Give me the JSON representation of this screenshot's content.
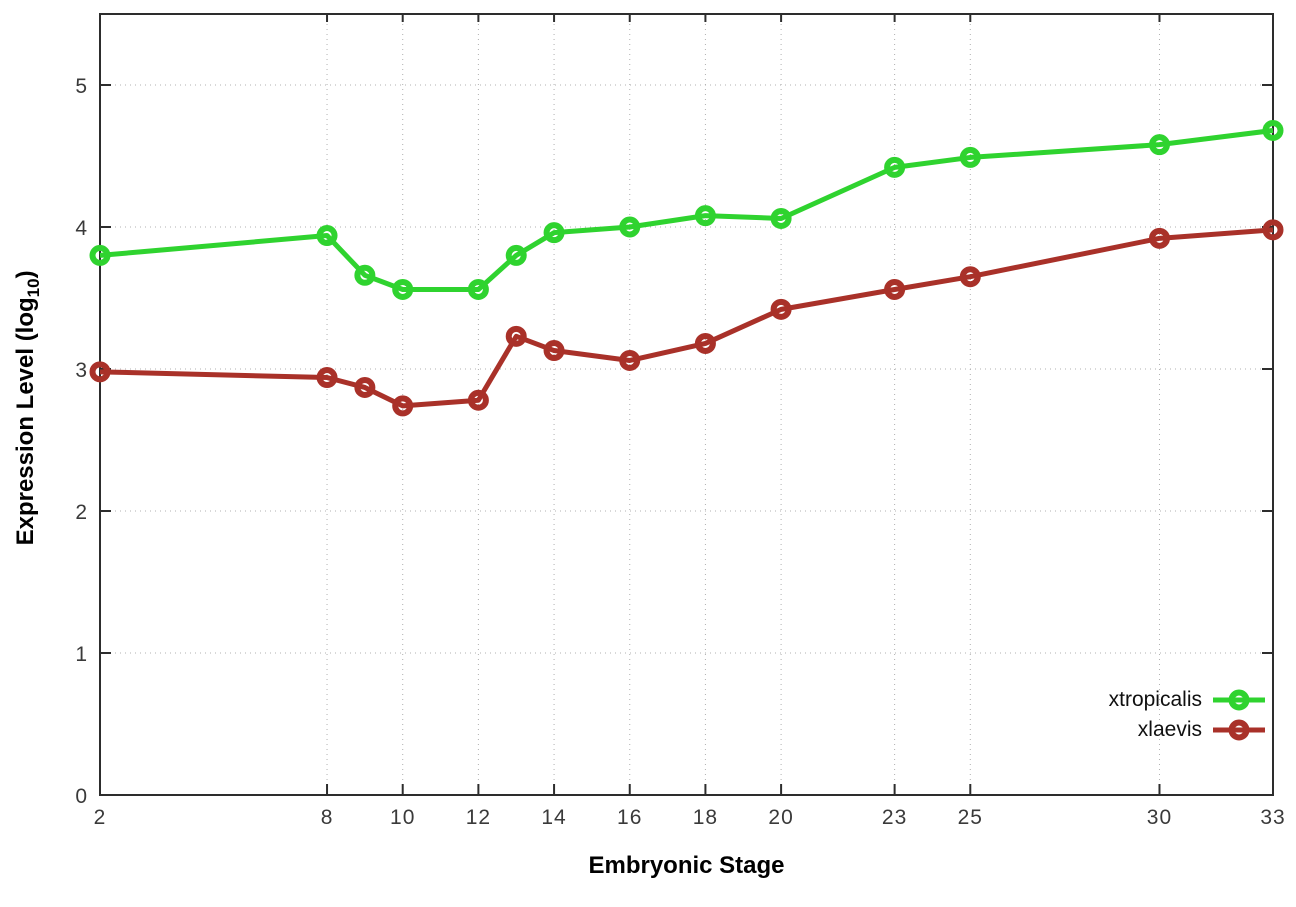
{
  "chart_data": {
    "type": "line",
    "title": "",
    "xlabel": "Embryonic Stage",
    "ylabel": {
      "pre": "Expression Level (log",
      "sub": "10",
      "post": ")"
    },
    "x": [
      2,
      8,
      9,
      10,
      12,
      13,
      14,
      16,
      18,
      20,
      23,
      25,
      30,
      33
    ],
    "series": [
      {
        "name": "xtropicalis",
        "color": "#2fd32f",
        "values": [
          3.8,
          3.94,
          3.66,
          3.56,
          3.56,
          3.8,
          3.96,
          4.0,
          4.08,
          4.06,
          4.42,
          4.49,
          4.58,
          4.68
        ]
      },
      {
        "name": "xlaevis",
        "color": "#a93129",
        "values": [
          2.98,
          2.94,
          2.87,
          2.74,
          2.78,
          3.23,
          3.13,
          3.06,
          3.18,
          3.42,
          3.56,
          3.65,
          3.92,
          3.98
        ]
      }
    ],
    "x_ticks": [
      2,
      8,
      10,
      12,
      14,
      16,
      18,
      20,
      23,
      25,
      30,
      33
    ],
    "y_ticks": [
      0,
      1,
      2,
      3,
      4,
      5
    ],
    "xlim": [
      2,
      33
    ],
    "ylim": [
      0,
      5.5
    ],
    "grid": true,
    "grid_style": "dotted",
    "legend_position": "bottom-right",
    "colors": {
      "grid": "#b0b0b0",
      "axis_border": "#2d2d2d",
      "tick_text": "#3a3a3a"
    }
  }
}
